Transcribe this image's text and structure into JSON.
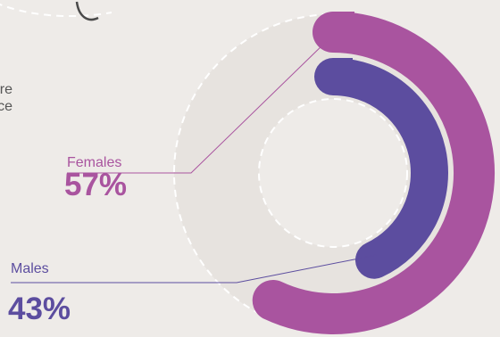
{
  "clipped_text": [
    "re",
    "ce"
  ],
  "chart_data": {
    "type": "donut",
    "series": [
      {
        "name": "Females",
        "label": "Females",
        "value_label": "57%",
        "value": 57,
        "color": "#a9549f"
      },
      {
        "name": "Males",
        "label": "Males",
        "value_label": "43%",
        "value": 43,
        "color": "#5c4d9f"
      }
    ],
    "label_text_color": "#555555",
    "background": "#eeebe8"
  }
}
